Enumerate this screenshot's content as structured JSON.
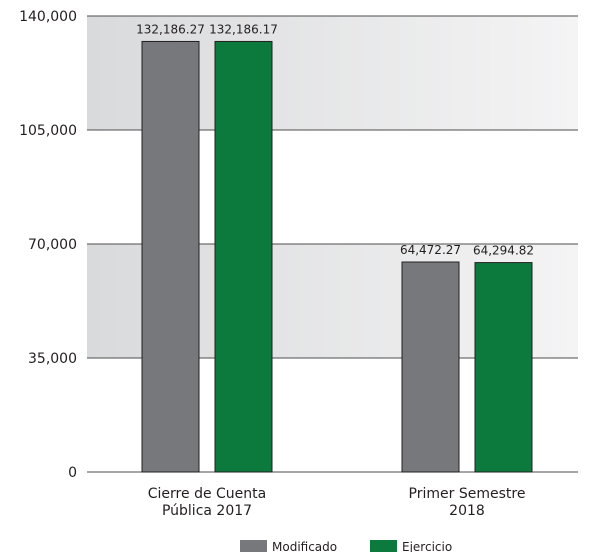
{
  "chart_data": {
    "type": "bar",
    "categories": [
      [
        "Cierre de Cuenta",
        "Pública 2017"
      ],
      [
        "Primer Semestre",
        "2018"
      ]
    ],
    "series": [
      {
        "name": "Modificado",
        "color": "#77787b",
        "values": [
          132186.27,
          64472.27
        ],
        "labels": [
          "132,186.27",
          "64,472.27"
        ]
      },
      {
        "name": "Ejercicio",
        "color": "#0d7a3d",
        "values": [
          132186.17,
          64294.82
        ],
        "labels": [
          "132,186.17",
          "64,294.82"
        ]
      }
    ],
    "ylim": [
      0,
      140000
    ],
    "yticks": [
      0,
      35000,
      70000,
      105000,
      140000
    ],
    "ytick_labels": [
      "0",
      "35,000",
      "70,000",
      "105,000",
      "140,000"
    ],
    "grid": true,
    "legend_position": "bottom-center",
    "band_color": "#e6e7e8"
  }
}
